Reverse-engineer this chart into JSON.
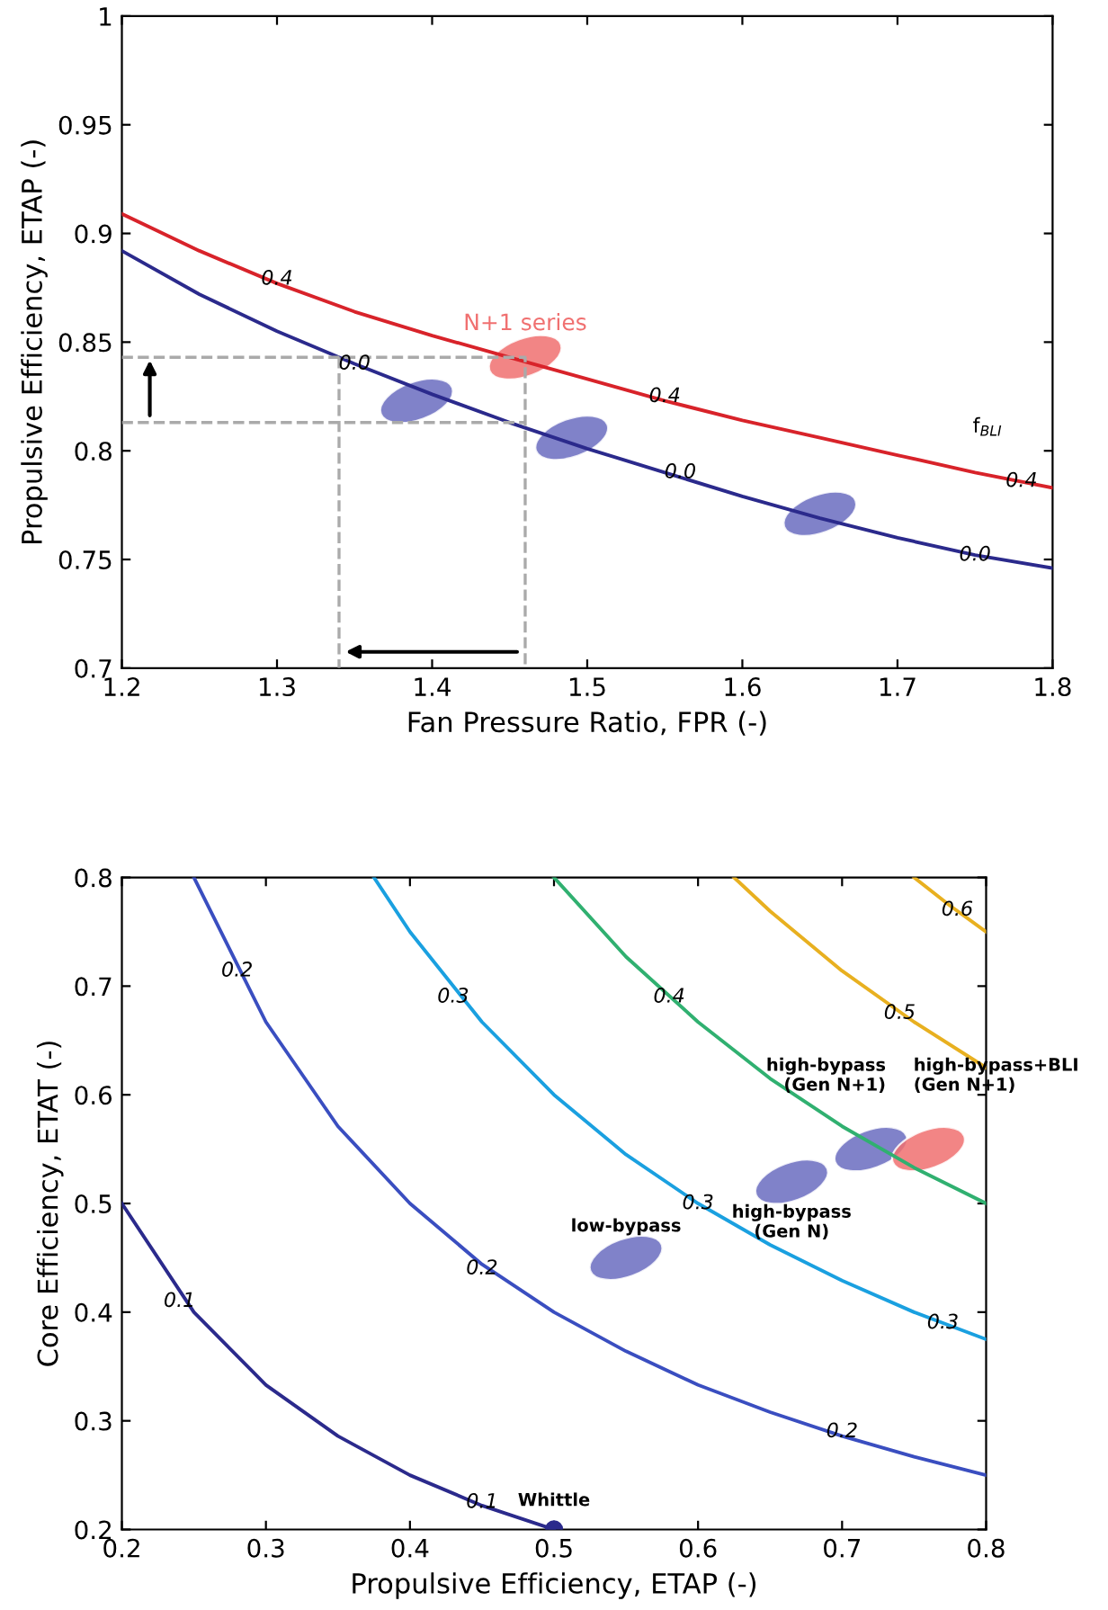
{
  "chart_data": [
    {
      "type": "line",
      "xlabel": "Fan Pressure Ratio, FPR (-)",
      "ylabel": "Propulsive Efficiency, ETAP (-)",
      "xlim": [
        1.2,
        1.8
      ],
      "xticks": [
        1.2,
        1.3,
        1.4,
        1.5,
        1.6,
        1.7,
        1.8
      ],
      "ylim": [
        0.7,
        1
      ],
      "yticks": [
        0.7,
        0.75,
        0.8,
        0.85,
        0.9,
        0.95,
        1
      ],
      "x": [
        1.2,
        1.25,
        1.3,
        1.35,
        1.4,
        1.45,
        1.5,
        1.55,
        1.6,
        1.65,
        1.7,
        1.75,
        1.8
      ],
      "series": [
        {
          "color": "#d8232a",
          "values": [
            0.909,
            0.892,
            0.877,
            0.864,
            0.853,
            0.843,
            0.833,
            0.823,
            0.814,
            0.806,
            0.798,
            0.79,
            0.783
          ]
        },
        {
          "color": "#2b2a8c",
          "values": [
            0.892,
            0.872,
            0.855,
            0.84,
            0.826,
            0.813,
            0.801,
            0.79,
            0.779,
            0.769,
            0.76,
            0.752,
            0.746
          ]
        },
        {
          "color": "#aaaaaa",
          "line_style": "dashed",
          "x": [
            1.2,
            1.46,
            1.46
          ],
          "values": [
            0.843,
            0.843,
            0.7
          ]
        },
        {
          "color": "#aaaaaa",
          "line_style": "dashed",
          "x": [
            1.2,
            1.46
          ],
          "values": [
            0.813,
            0.813
          ]
        },
        {
          "color": "#aaaaaa",
          "line_style": "dashed",
          "x": [
            1.34,
            1.34
          ],
          "values": [
            0.843,
            0.7
          ]
        },
        {
          "type": "scatter",
          "name": "N+1 series",
          "x": [
            1.46
          ],
          "values": [
            0.843
          ],
          "color": "#f07070"
        },
        {
          "type": "scatter",
          "x": [
            1.39,
            1.49,
            1.65
          ],
          "values": [
            0.823,
            0.806,
            0.771
          ],
          "color": "#6a6cc0"
        }
      ],
      "annotations": [
        {
          "text": "0.4",
          "x": 1.3,
          "y": 0.879
        },
        {
          "text": "0.4",
          "x": 1.55,
          "y": 0.825
        },
        {
          "text": "0.4",
          "x": 1.78,
          "y": 0.786
        },
        {
          "text": "0.0",
          "x": 1.35,
          "y": 0.84
        },
        {
          "text": "0.0",
          "x": 1.56,
          "y": 0.79
        },
        {
          "text": "0.0",
          "x": 1.75,
          "y": 0.752
        },
        "f$_{BLI}$"
      ]
    },
    {
      "type": "line",
      "xlabel": "Propulsive Efficiency, ETAP (-)",
      "ylabel": "Core Efficiency, ETAT (-)",
      "xlim": [
        0.2,
        0.8
      ],
      "xticks": [
        0.2,
        0.3,
        0.4,
        0.5,
        0.6,
        0.7,
        0.8
      ],
      "ylim": [
        0.2,
        0.8
      ],
      "yticks": [
        0.2,
        0.3,
        0.4,
        0.5,
        0.6,
        0.7,
        0.8
      ],
      "series": [
        {
          "color": "#2b2a8c",
          "x": [
            0.2,
            0.25,
            0.3,
            0.35,
            0.4,
            0.45,
            0.5
          ],
          "values": [
            0.5,
            0.4,
            0.333,
            0.286,
            0.25,
            0.222,
            0.2
          ]
        },
        {
          "color": "#3a4ec0",
          "x": [
            0.25,
            0.3,
            0.35,
            0.4,
            0.45,
            0.5,
            0.55,
            0.6,
            0.65,
            0.7,
            0.75,
            0.8
          ],
          "values": [
            0.8,
            0.667,
            0.571,
            0.5,
            0.444,
            0.4,
            0.364,
            0.333,
            0.308,
            0.286,
            0.267,
            0.25
          ]
        },
        {
          "color": "#1aa0e0",
          "x": [
            0.375,
            0.4,
            0.45,
            0.5,
            0.55,
            0.6,
            0.65,
            0.7,
            0.75,
            0.8
          ],
          "values": [
            0.8,
            0.75,
            0.667,
            0.6,
            0.545,
            0.5,
            0.462,
            0.429,
            0.4,
            0.375
          ]
        },
        {
          "color": "#30b070",
          "x": [
            0.5,
            0.55,
            0.6,
            0.65,
            0.7,
            0.75,
            0.8
          ],
          "values": [
            0.8,
            0.727,
            0.667,
            0.615,
            0.571,
            0.533,
            0.5
          ]
        },
        {
          "color": "#e8b020",
          "x": [
            0.625,
            0.65,
            0.7,
            0.75,
            0.8
          ],
          "values": [
            0.8,
            0.769,
            0.714,
            0.667,
            0.625
          ]
        },
        {
          "color": "#e8b020",
          "x": [
            0.75,
            0.775,
            0.8
          ],
          "values": [
            0.8,
            0.774,
            0.75
          ]
        },
        {
          "type": "scatter",
          "name": "low-bypass",
          "x": [
            0.55
          ],
          "values": [
            0.45
          ],
          "color": "#6a6cc0"
        },
        {
          "type": "scatter",
          "name": "high-bypass\n(Gen N)",
          "x": [
            0.665
          ],
          "values": [
            0.52
          ],
          "color": "#6a6cc0"
        },
        {
          "type": "scatter",
          "name": "high-bypass\n(Gen N+1)",
          "x": [
            0.72
          ],
          "values": [
            0.55
          ],
          "color": "#6a6cc0"
        },
        {
          "type": "scatter",
          "name": "high-bypass+BLI\n(Gen N+1)",
          "x": [
            0.76
          ],
          "values": [
            0.55
          ],
          "color": "#f07070"
        },
        {
          "type": "scatter",
          "name": "Whittle",
          "marker": "circle",
          "x": [
            0.5
          ],
          "values": [
            0.2
          ],
          "color": "#2b2a8c"
        }
      ],
      "annotations": [
        {
          "text": "0.1",
          "x": 0.24,
          "y": 0.41
        },
        {
          "text": "0.1",
          "x": 0.45,
          "y": 0.225
        },
        {
          "text": "0.2",
          "x": 0.28,
          "y": 0.714
        },
        {
          "text": "0.2",
          "x": 0.45,
          "y": 0.44
        },
        {
          "text": "0.2",
          "x": 0.7,
          "y": 0.29
        },
        {
          "text": "0.3",
          "x": 0.43,
          "y": 0.69
        },
        {
          "text": "0.3",
          "x": 0.6,
          "y": 0.5
        },
        {
          "text": "0.3",
          "x": 0.77,
          "y": 0.39
        },
        {
          "text": "0.4",
          "x": 0.58,
          "y": 0.69
        },
        {
          "text": "0.5",
          "x": 0.74,
          "y": 0.675
        },
        {
          "text": "0.6",
          "x": 0.78,
          "y": 0.77
        }
      ]
    }
  ]
}
